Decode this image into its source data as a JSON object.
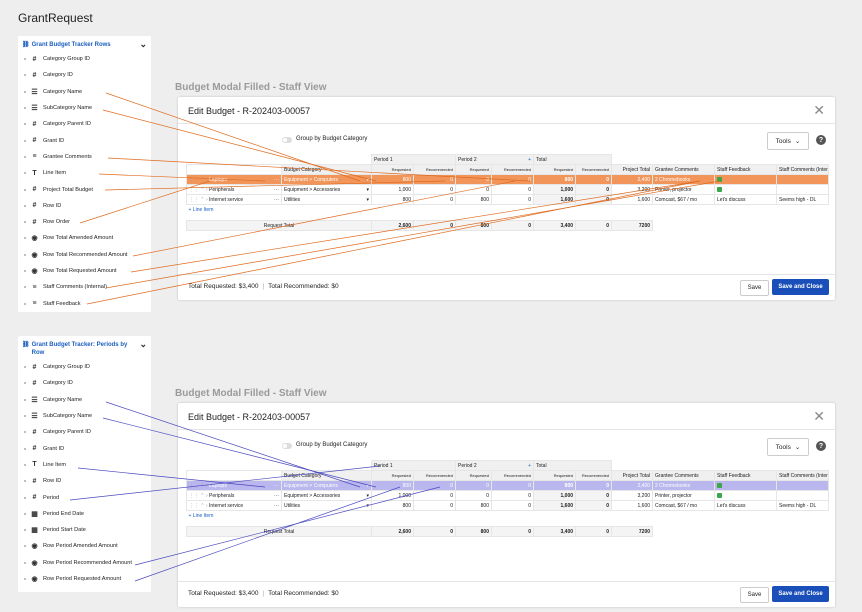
{
  "page_title": "GrantRequest",
  "colors": {
    "orange": "#e06a1e",
    "blue": "#4a4ac0",
    "link": "#1a5fc0"
  },
  "side1": {
    "title": "Grant Budget Tracker Rows",
    "items": [
      {
        "icon": "#",
        "label": "Category Group ID"
      },
      {
        "icon": "#",
        "label": "Category ID"
      },
      {
        "icon": "☰",
        "label": "Category Name"
      },
      {
        "icon": "☰",
        "label": "SubCategory Name"
      },
      {
        "icon": "#",
        "label": "Category Parent ID"
      },
      {
        "icon": "#",
        "label": "Grant ID"
      },
      {
        "icon": "≡",
        "label": "Grantee Comments"
      },
      {
        "icon": "T",
        "label": "Line Item"
      },
      {
        "icon": "#",
        "label": "Project Total Budget"
      },
      {
        "icon": "#",
        "label": "Row ID"
      },
      {
        "icon": "#",
        "label": "Row Order"
      },
      {
        "icon": "◉",
        "label": "Row Total Amended Amount"
      },
      {
        "icon": "◉",
        "label": "Row Total Recommended Amount"
      },
      {
        "icon": "◉",
        "label": "Row Total Requested Amount"
      },
      {
        "icon": "≡",
        "label": "Staff Comments (Internal)"
      },
      {
        "icon": "≡",
        "label": "Staff Feedback"
      }
    ]
  },
  "side2": {
    "title": "Grant Budget Tracker: Periods by Row",
    "items": [
      {
        "icon": "#",
        "label": "Category Group ID"
      },
      {
        "icon": "#",
        "label": "Category ID"
      },
      {
        "icon": "☰",
        "label": "Category Name"
      },
      {
        "icon": "☰",
        "label": "SubCategory Name"
      },
      {
        "icon": "#",
        "label": "Category Parent ID"
      },
      {
        "icon": "#",
        "label": "Grant ID"
      },
      {
        "icon": "T",
        "label": "Line Item"
      },
      {
        "icon": "#",
        "label": "Row ID"
      },
      {
        "icon": "#",
        "label": "Period"
      },
      {
        "icon": "▦",
        "label": "Period End Date"
      },
      {
        "icon": "▦",
        "label": "Period Start Date"
      },
      {
        "icon": "◉",
        "label": "Row Period Amended Amount"
      },
      {
        "icon": "◉",
        "label": "Row Period Recommended Amount"
      },
      {
        "icon": "◉",
        "label": "Row Period Requested Amount"
      }
    ]
  },
  "section_title": "Budget Modal Filled - Staff View",
  "modal": {
    "title": "Edit Budget - R-202403-00057",
    "toggle_label": "Group by Budget Category",
    "tools_label": "Tools",
    "help": "?",
    "headers": {
      "budget_category": "Budget Category",
      "period1": "Period 1",
      "period2": "Period 2",
      "plus": "+",
      "total": "Total",
      "requested": "Requested",
      "recommended": "Recommended",
      "project_total": "Project Total",
      "grantee_comments": "Grantee Comments",
      "staff_feedback": "Staff Feedback",
      "staff_comments": "Staff Comments (Internal)"
    },
    "rows": [
      {
        "line_item": "Laptops",
        "category": "Equipment > Computers",
        "p1_req": "800",
        "p1_rec": "0",
        "p2_req": "0",
        "p2_rec": "0",
        "t_req": "800",
        "t_rec": "0",
        "project_total": "2,400",
        "grantee": "2 Chromebooks",
        "feedback": true,
        "staff_comments": ""
      },
      {
        "line_item": "Peripherals",
        "category": "Equipment > Accessories",
        "p1_req": "1,000",
        "p1_rec": "0",
        "p2_req": "0",
        "p2_rec": "0",
        "t_req": "1,000",
        "t_rec": "0",
        "project_total": "3,200",
        "grantee": "Printer, projector",
        "feedback": true,
        "staff_comments": ""
      },
      {
        "line_item": "Internet service",
        "category": "Utilities",
        "p1_req": "800",
        "p1_rec": "0",
        "p2_req": "800",
        "p2_rec": "0",
        "t_req": "1,600",
        "t_rec": "0",
        "project_total": "1,600",
        "grantee": "Comcast, $67 / mo",
        "feedback_text": "Let's discuss",
        "staff_comments": "Seems high - DL"
      }
    ],
    "add_line": "+ Line Item",
    "total_row": {
      "label": "Request Total",
      "p1_req": "2,600",
      "p1_rec": "0",
      "p2_req": "800",
      "p2_rec": "0",
      "t_req": "3,400",
      "t_rec": "0",
      "project_total": "7200"
    },
    "footer_requested": "Total Requested: $3,400",
    "footer_recommended": "Total Recommended: $0",
    "save": "Save",
    "save_close": "Save and Close"
  }
}
